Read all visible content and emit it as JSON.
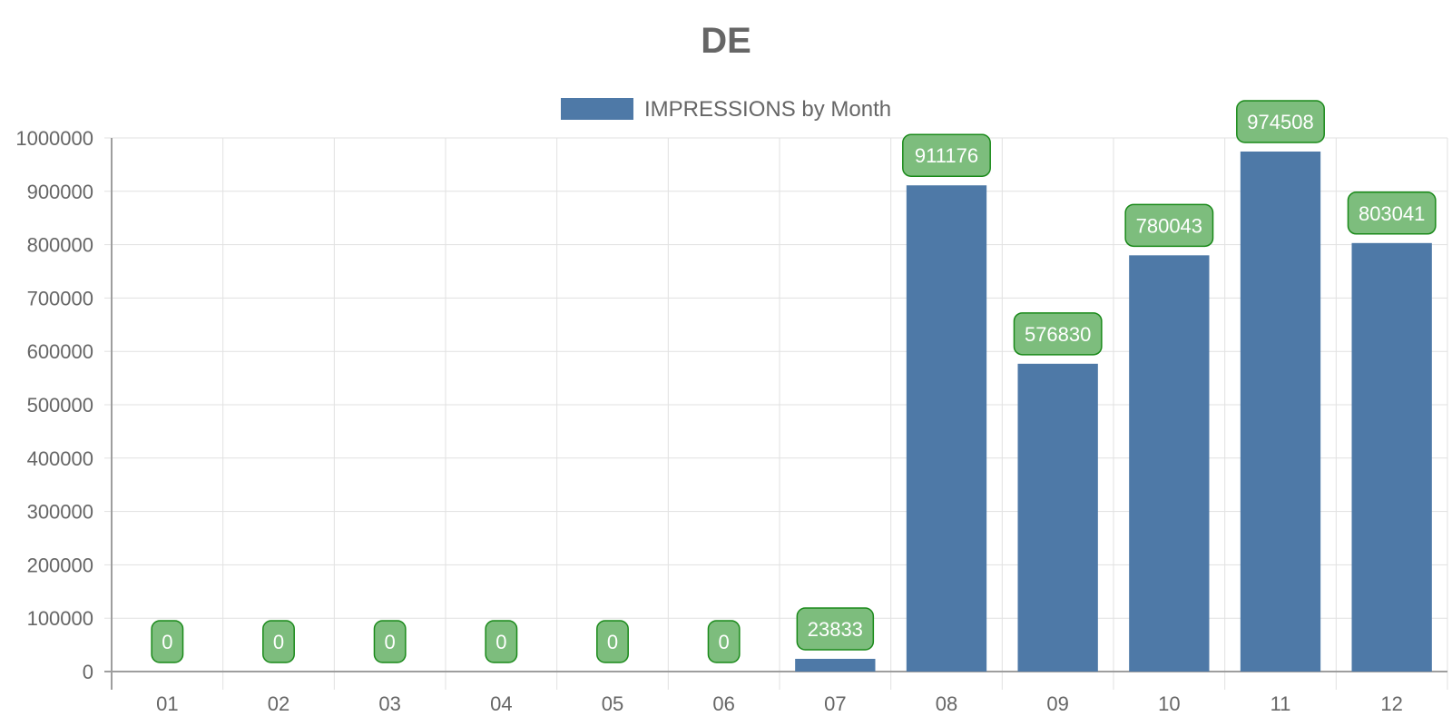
{
  "chart_data": {
    "type": "bar",
    "title": "DE",
    "categories": [
      "01",
      "02",
      "03",
      "04",
      "05",
      "06",
      "07",
      "08",
      "09",
      "10",
      "11",
      "12"
    ],
    "series": [
      {
        "name": "IMPRESSIONS by Month",
        "values": [
          0,
          0,
          0,
          0,
          0,
          0,
          23833,
          911176,
          576830,
          780043,
          974508,
          803041
        ]
      }
    ],
    "xlabel": "",
    "ylabel": "",
    "ylim": [
      0,
      1000000
    ],
    "yticks": [
      "0",
      "100000",
      "200000",
      "300000",
      "400000",
      "500000",
      "600000",
      "700000",
      "800000",
      "900000",
      "1000000"
    ],
    "grid": true,
    "legend_position": "top-center",
    "data_labels": true
  },
  "colors": {
    "bar": "#4e79a7",
    "label_fill": "#7dbd7d",
    "label_stroke": "#1a8a1a"
  }
}
